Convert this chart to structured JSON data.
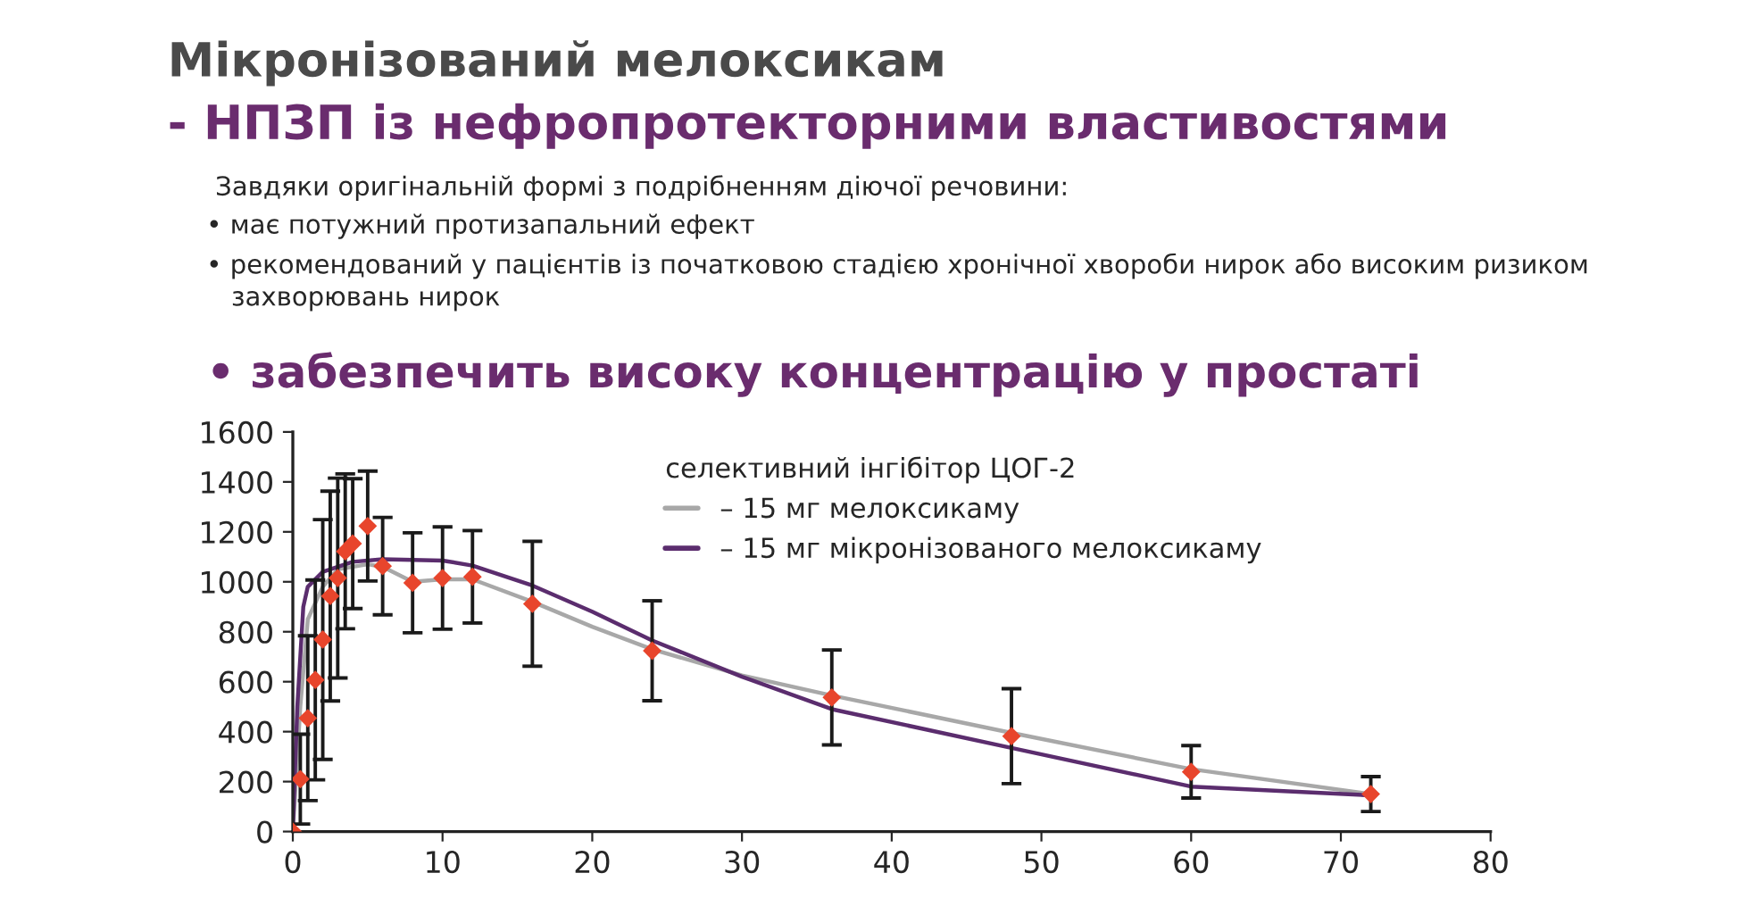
{
  "chart_data": {
    "type": "line",
    "title": "Мікронізований мелоксикам",
    "subtitle": "- НПЗП із нефропротекторними властивостями",
    "annotations": [
      "Завдяки оригінальній формі з подрібненням діючої речовини:",
      "• має потужний протизапальний ефект",
      "• рекомендований у пацієнтів із початковою стадією хронічної хвороби нирок або високим ризиком\n   захворювань нирок",
      "• забезпечить високу концентрацію у простаті"
    ],
    "legend_title": "селективний інгібітор ЦОГ-2",
    "legend": "top",
    "grid": false,
    "xlim": [
      0,
      80
    ],
    "xticks": [
      0,
      10,
      20,
      30,
      40,
      50,
      60,
      70,
      80
    ],
    "ylim": [
      0,
      1600
    ],
    "yticks": [
      0,
      200,
      400,
      600,
      800,
      1000,
      1200,
      1400,
      1600
    ],
    "series": [
      {
        "name": "– 15 мг мелоксикаму",
        "color": "#a8a8a8",
        "x": [
          0,
          0.5,
          1,
          2,
          3,
          5,
          6,
          8,
          10,
          12,
          16,
          20,
          24,
          30,
          36,
          48,
          60,
          72
        ],
        "values": [
          0,
          500,
          850,
          980,
          1050,
          1070,
          1060,
          1000,
          1010,
          1010,
          920,
          820,
          730,
          625,
          545,
          395,
          250,
          150
        ]
      },
      {
        "name": "– 15 мг мікронізованого мелоксикаму",
        "color": "#5b2d6e",
        "x": [
          0,
          0.3,
          0.7,
          1,
          2,
          4,
          6,
          10,
          12,
          16,
          20,
          24,
          30,
          36,
          48,
          60,
          72
        ],
        "values": [
          0,
          500,
          900,
          980,
          1040,
          1080,
          1090,
          1085,
          1065,
          985,
          880,
          765,
          620,
          490,
          335,
          180,
          145
        ]
      },
      {
        "type": "scatter",
        "marker": "diamond",
        "color": "#e8452c",
        "x": [
          0,
          0.5,
          1,
          1.5,
          2,
          2.5,
          3,
          3.5,
          4,
          5,
          6,
          8,
          10,
          12,
          16,
          24,
          36,
          48,
          60,
          72
        ],
        "values": [
          0,
          210,
          454,
          607,
          769,
          943,
          1015,
          1122,
          1153,
          1223,
          1063,
          996,
          1015,
          1020,
          912,
          724,
          537,
          382,
          239,
          150
        ],
        "errors": [
          null,
          180,
          330,
          400,
          480,
          420,
          400,
          310,
          260,
          220,
          195,
          200,
          205,
          185,
          250,
          200,
          190,
          190,
          105,
          70
        ]
      }
    ]
  }
}
